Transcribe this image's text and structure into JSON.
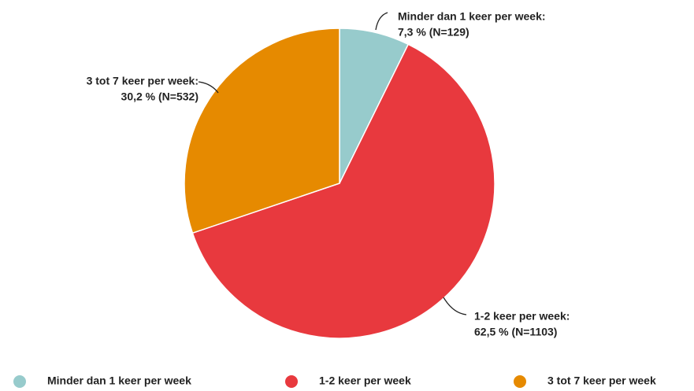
{
  "chart_data": {
    "type": "pie",
    "categories": [
      "Minder dan 1 keer per week",
      "1-2 keer per week",
      "3 tot 7 keer per week"
    ],
    "values": [
      7.3,
      62.5,
      30.2
    ],
    "label_titles": [
      "Minder dan 1 keer per week:",
      "1-2 keer per week:",
      "3 tot 7 keer per week:"
    ],
    "value_labels": [
      "7,3 % (N=129)",
      "62,5 % (N=1103)",
      "30,2 % (N=532)"
    ],
    "colors": [
      "#97cbcc",
      "#e8393e",
      "#e68a00"
    ],
    "legend": "bottom"
  }
}
